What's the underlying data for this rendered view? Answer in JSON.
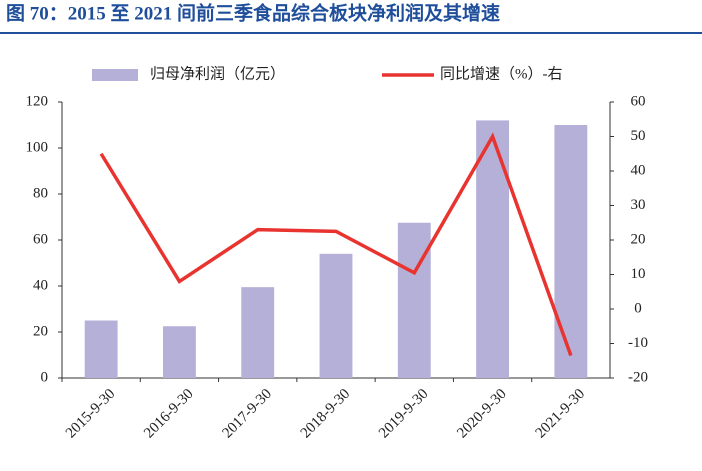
{
  "chart_data": {
    "type": "bar-line",
    "title": "图 70：2015 至 2021 间前三季食品综合板块净利润及其增速",
    "categories": [
      "2015-9-30",
      "2016-9-30",
      "2017-9-30",
      "2018-9-30",
      "2019-9-30",
      "2020-9-30",
      "2021-9-30"
    ],
    "series": [
      {
        "name": "归母净利润（亿元）",
        "type": "bar",
        "color": "#b4b0d8",
        "values": [
          25,
          22.5,
          39.5,
          54,
          67.5,
          112,
          110
        ]
      },
      {
        "name": "同比增速（%）-右",
        "type": "line",
        "axis": "y2",
        "color": "#e8332f",
        "values": [
          45,
          8,
          23,
          22.5,
          10.5,
          50,
          -13.5
        ]
      }
    ],
    "ylim": [
      0,
      120
    ],
    "yticks": [
      0,
      20,
      40,
      60,
      80,
      100,
      120
    ],
    "y2lim": [
      -20,
      60
    ],
    "y2ticks": [
      -20,
      -10,
      0,
      10,
      20,
      30,
      40,
      50,
      60
    ],
    "legend": "top"
  }
}
